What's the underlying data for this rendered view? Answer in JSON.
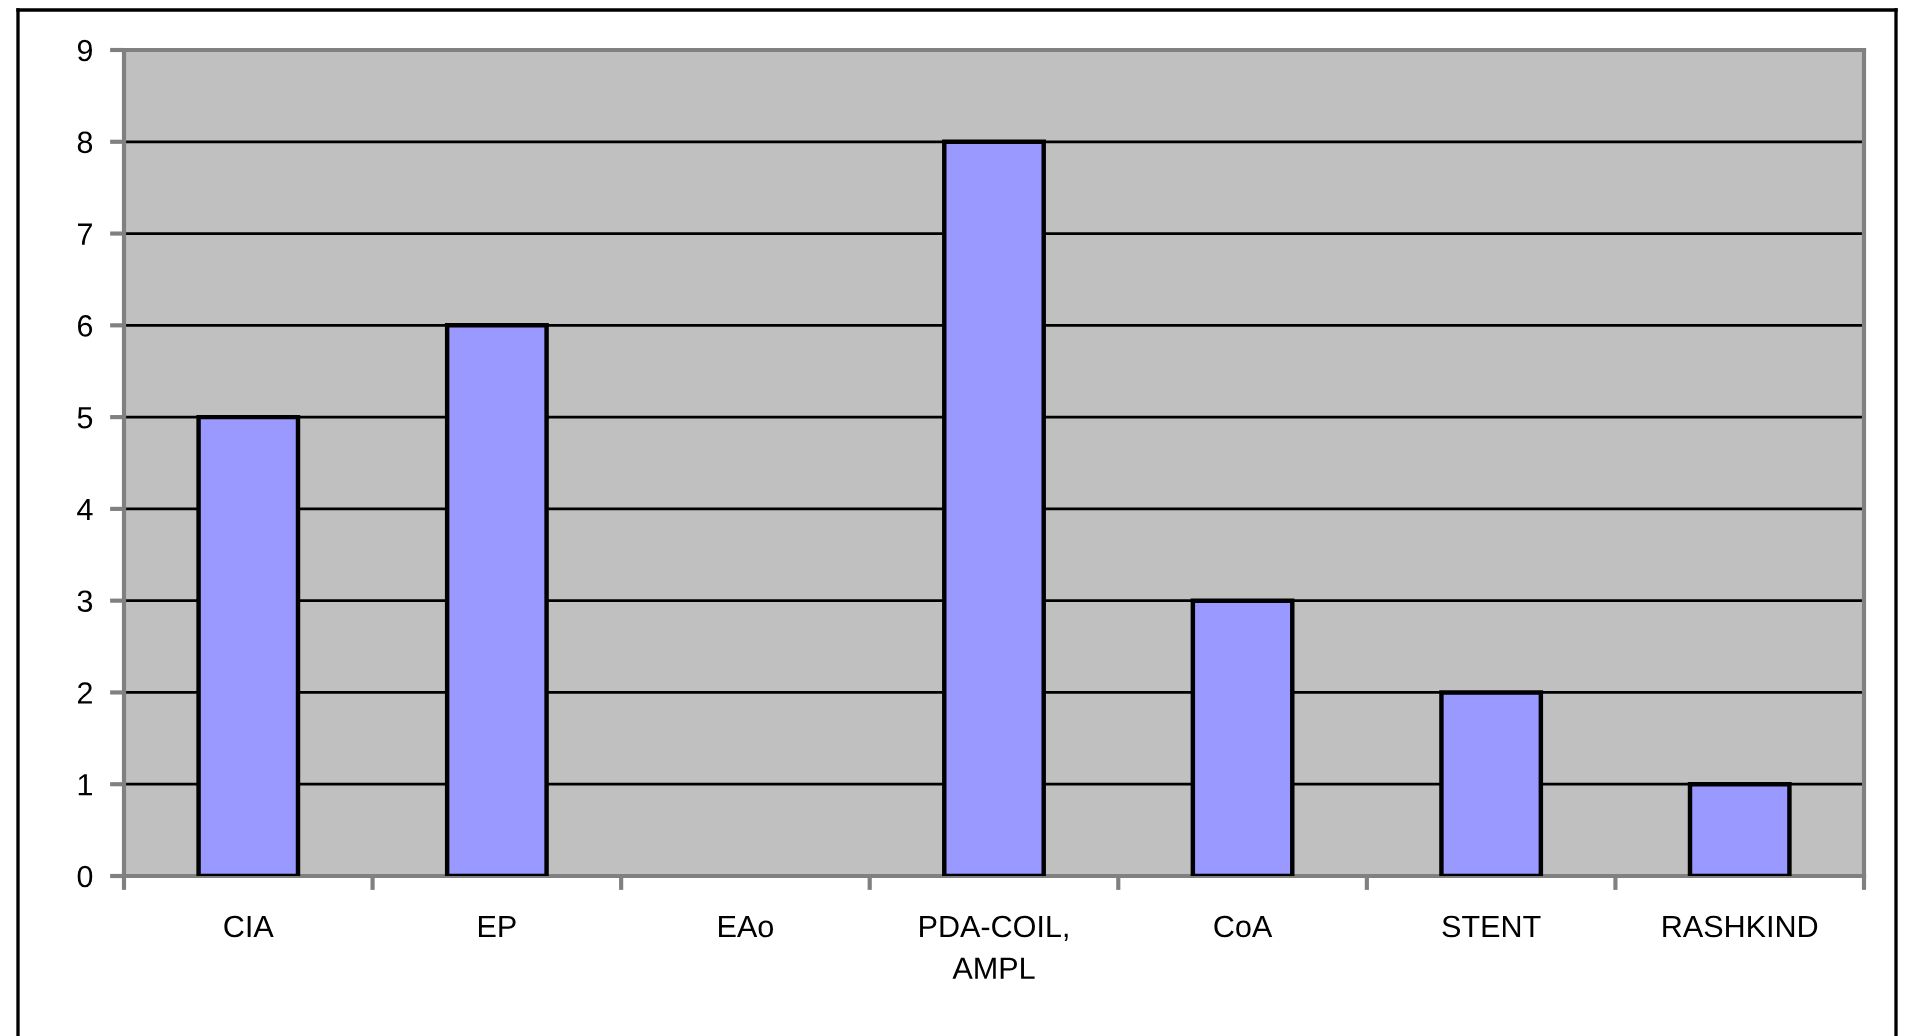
{
  "chart_data": {
    "type": "bar",
    "categories": [
      "CIA",
      "EP",
      "EAo",
      "PDA-COIL,\nAMPL",
      "CoA",
      "STENT",
      "RASHKIND"
    ],
    "values": [
      5,
      6,
      null,
      8,
      3,
      2,
      1
    ],
    "color": "#9999ff",
    "ylim": [
      0,
      9
    ],
    "yticks": [
      0,
      1,
      2,
      3,
      4,
      5,
      6,
      7,
      8,
      9
    ],
    "grid": "y",
    "legend": false
  }
}
